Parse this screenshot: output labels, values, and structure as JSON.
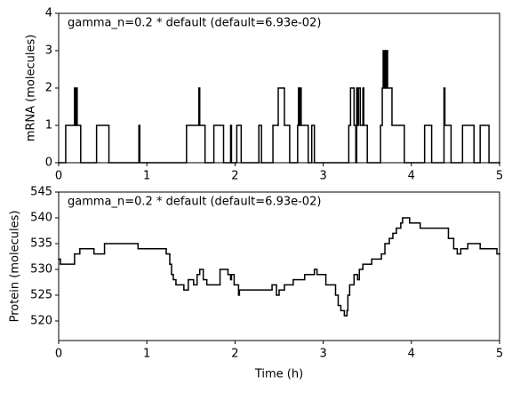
{
  "chart_data": [
    {
      "type": "line",
      "step": "post",
      "color": "#000000",
      "annotation": "gamma_n=0.2 * default (default=6.93e-02)",
      "ylabel": "mRNA (molecules)",
      "xlim": [
        0,
        5
      ],
      "xticks": [
        0,
        1,
        2,
        3,
        4,
        5
      ],
      "ylim": [
        0,
        4
      ],
      "yticks": [
        0,
        1,
        2,
        3,
        4
      ],
      "x": [
        0,
        0.08,
        0.18,
        0.19,
        0.2,
        0.21,
        0.25,
        0.43,
        0.57,
        0.91,
        0.92,
        1.45,
        1.59,
        1.6,
        1.66,
        1.76,
        1.87,
        1.95,
        1.96,
        2.02,
        2.07,
        2.27,
        2.3,
        2.43,
        2.49,
        2.56,
        2.62,
        2.71,
        2.72,
        2.73,
        2.74,
        2.75,
        2.83,
        2.87,
        2.9,
        3.29,
        3.31,
        3.35,
        3.37,
        3.38,
        3.39,
        3.4,
        3.42,
        3.45,
        3.46,
        3.5,
        3.65,
        3.67,
        3.68,
        3.69,
        3.7,
        3.71,
        3.72,
        3.73,
        3.78,
        3.92,
        4.15,
        4.23,
        4.37,
        4.38,
        4.45,
        4.58,
        4.71,
        4.78,
        4.88,
        5
      ],
      "values": [
        0,
        1,
        2,
        1,
        2,
        1,
        0,
        1,
        0,
        1,
        0,
        1,
        2,
        1,
        0,
        1,
        0,
        1,
        0,
        1,
        0,
        1,
        0,
        1,
        2,
        1,
        0,
        1,
        2,
        1,
        2,
        1,
        0,
        1,
        0,
        1,
        2,
        1,
        0,
        2,
        1,
        2,
        1,
        2,
        1,
        0,
        1,
        2,
        3,
        2,
        3,
        2,
        3,
        2,
        1,
        0,
        1,
        0,
        2,
        1,
        0,
        1,
        0,
        1,
        0,
        0
      ]
    },
    {
      "type": "line",
      "step": "post",
      "color": "#000000",
      "annotation": "gamma_n=0.2 * default (default=6.93e-02)",
      "ylabel": "Protein (molecules)",
      "xlabel": "Time (h)",
      "xlim": [
        0,
        5
      ],
      "xticks": [
        0,
        1,
        2,
        3,
        4,
        5
      ],
      "ylim": [
        516.2,
        545
      ],
      "yticks": [
        520,
        525,
        530,
        535,
        540,
        545
      ],
      "x": [
        0,
        0.02,
        0.18,
        0.24,
        0.4,
        0.52,
        0.9,
        1.22,
        1.26,
        1.28,
        1.3,
        1.33,
        1.42,
        1.47,
        1.53,
        1.57,
        1.6,
        1.64,
        1.68,
        1.83,
        1.92,
        1.95,
        1.96,
        1.99,
        2.04,
        2.05,
        2.42,
        2.47,
        2.5,
        2.56,
        2.66,
        2.79,
        2.9,
        2.93,
        3.03,
        3.14,
        3.17,
        3.2,
        3.24,
        3.27,
        3.28,
        3.3,
        3.35,
        3.39,
        3.41,
        3.45,
        3.55,
        3.66,
        3.7,
        3.75,
        3.79,
        3.83,
        3.88,
        3.9,
        3.98,
        4.1,
        4.42,
        4.48,
        4.52,
        4.56,
        4.64,
        4.78,
        4.97,
        5
      ],
      "values": [
        532,
        531,
        533,
        534,
        533,
        535,
        534,
        533,
        531,
        529,
        528,
        527,
        526,
        528,
        527,
        529,
        530,
        528,
        527,
        530,
        529,
        528,
        529,
        527,
        525,
        526,
        527,
        525,
        526,
        527,
        528,
        529,
        530,
        529,
        527,
        525,
        523,
        522,
        521,
        522,
        525,
        527,
        529,
        528,
        530,
        531,
        532,
        533,
        535,
        536,
        537,
        538,
        539,
        540,
        539,
        538,
        536,
        534,
        533,
        534,
        535,
        534,
        533,
        533
      ]
    }
  ]
}
